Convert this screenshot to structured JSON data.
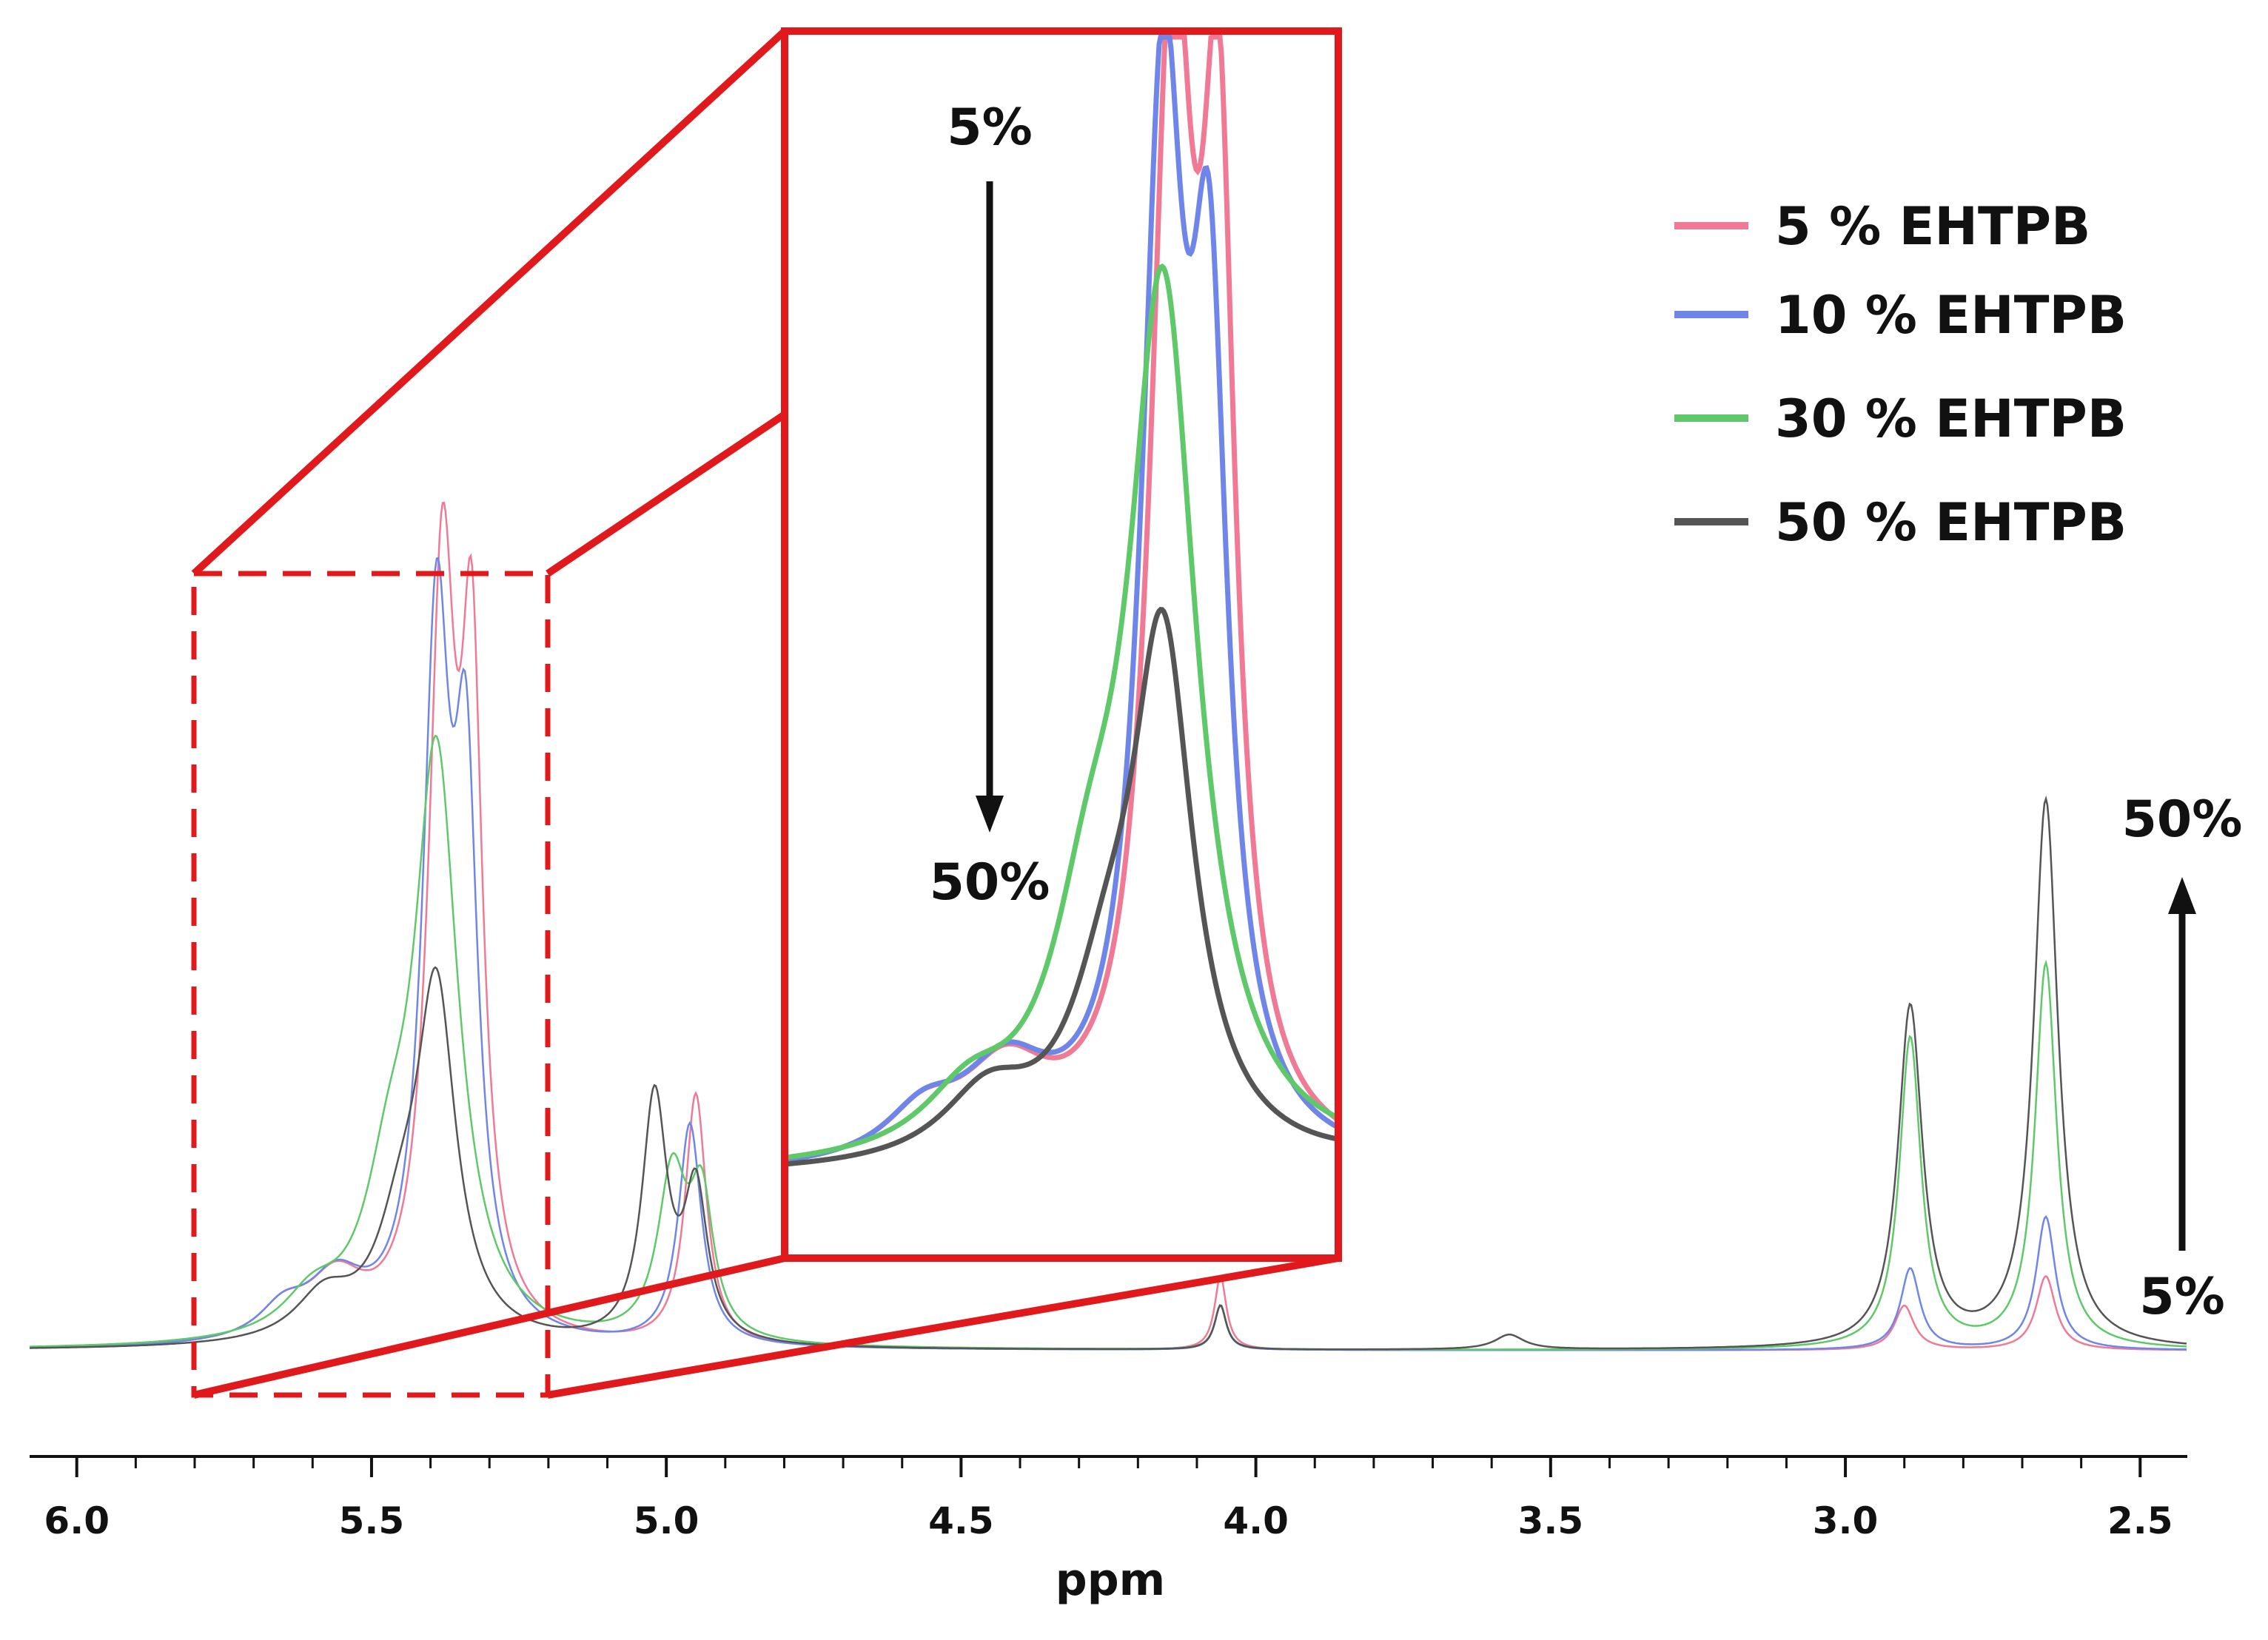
{
  "chart_data": {
    "type": "line",
    "title": "",
    "xlabel": "ppm",
    "ylabel": "",
    "xlim": [
      6.08,
      2.42
    ],
    "x_reversed": true,
    "x_ticks": [
      "6.0",
      "5.5",
      "5.0",
      "4.5",
      "4.0",
      "3.5",
      "3.0",
      "2.5"
    ],
    "grid": false,
    "legend_position": "top-right",
    "series": [
      {
        "name": "5 % EHTPB",
        "color": "#f07a95",
        "peaks": [
          {
            "center": 5.38,
            "height": 1.0,
            "width": 0.028
          },
          {
            "center": 5.33,
            "height": 0.82,
            "width": 0.022
          },
          {
            "center": 5.56,
            "height": 0.08,
            "width": 0.06
          },
          {
            "center": 5.65,
            "height": 0.04,
            "width": 0.05
          },
          {
            "center": 4.95,
            "height": 0.34,
            "width": 0.022
          },
          {
            "center": 4.06,
            "height": 0.1,
            "width": 0.012
          },
          {
            "center": 2.9,
            "height": 0.06,
            "width": 0.02
          },
          {
            "center": 2.66,
            "height": 0.1,
            "width": 0.02
          }
        ]
      },
      {
        "name": "10 % EHTPB",
        "color": "#6f86e8",
        "peaks": [
          {
            "center": 5.39,
            "height": 0.93,
            "width": 0.028
          },
          {
            "center": 5.34,
            "height": 0.68,
            "width": 0.024
          },
          {
            "center": 5.56,
            "height": 0.08,
            "width": 0.06
          },
          {
            "center": 5.65,
            "height": 0.04,
            "width": 0.05
          },
          {
            "center": 4.96,
            "height": 0.3,
            "width": 0.024
          },
          {
            "center": 4.06,
            "height": 0.06,
            "width": 0.012
          },
          {
            "center": 2.89,
            "height": 0.11,
            "width": 0.02
          },
          {
            "center": 2.66,
            "height": 0.18,
            "width": 0.02
          }
        ]
      },
      {
        "name": "30 % EHTPB",
        "color": "#5fc96a",
        "peaks": [
          {
            "center": 5.39,
            "height": 0.78,
            "width": 0.045
          },
          {
            "center": 5.47,
            "height": 0.16,
            "width": 0.05
          },
          {
            "center": 5.6,
            "height": 0.05,
            "width": 0.06
          },
          {
            "center": 4.99,
            "height": 0.22,
            "width": 0.03
          },
          {
            "center": 4.94,
            "height": 0.18,
            "width": 0.024
          },
          {
            "center": 4.06,
            "height": 0.06,
            "width": 0.012
          },
          {
            "center": 2.89,
            "height": 0.42,
            "width": 0.022
          },
          {
            "center": 2.66,
            "height": 0.52,
            "width": 0.022
          }
        ]
      },
      {
        "name": "50 % EHTPB",
        "color": "#555555",
        "peaks": [
          {
            "center": 5.39,
            "height": 0.46,
            "width": 0.04
          },
          {
            "center": 5.45,
            "height": 0.12,
            "width": 0.05
          },
          {
            "center": 5.58,
            "height": 0.06,
            "width": 0.06
          },
          {
            "center": 5.02,
            "height": 0.33,
            "width": 0.026
          },
          {
            "center": 4.95,
            "height": 0.2,
            "width": 0.024
          },
          {
            "center": 4.06,
            "height": 0.06,
            "width": 0.012
          },
          {
            "center": 3.57,
            "height": 0.02,
            "width": 0.03
          },
          {
            "center": 2.89,
            "height": 0.46,
            "width": 0.025
          },
          {
            "center": 2.66,
            "height": 0.74,
            "width": 0.025
          }
        ]
      }
    ],
    "inset": {
      "xlim": [
        5.8,
        5.2
      ],
      "annotation_top": "5%",
      "annotation_bottom": "50%"
    },
    "annotations": {
      "arrow_top": "50%",
      "arrow_bottom": "5%"
    }
  }
}
